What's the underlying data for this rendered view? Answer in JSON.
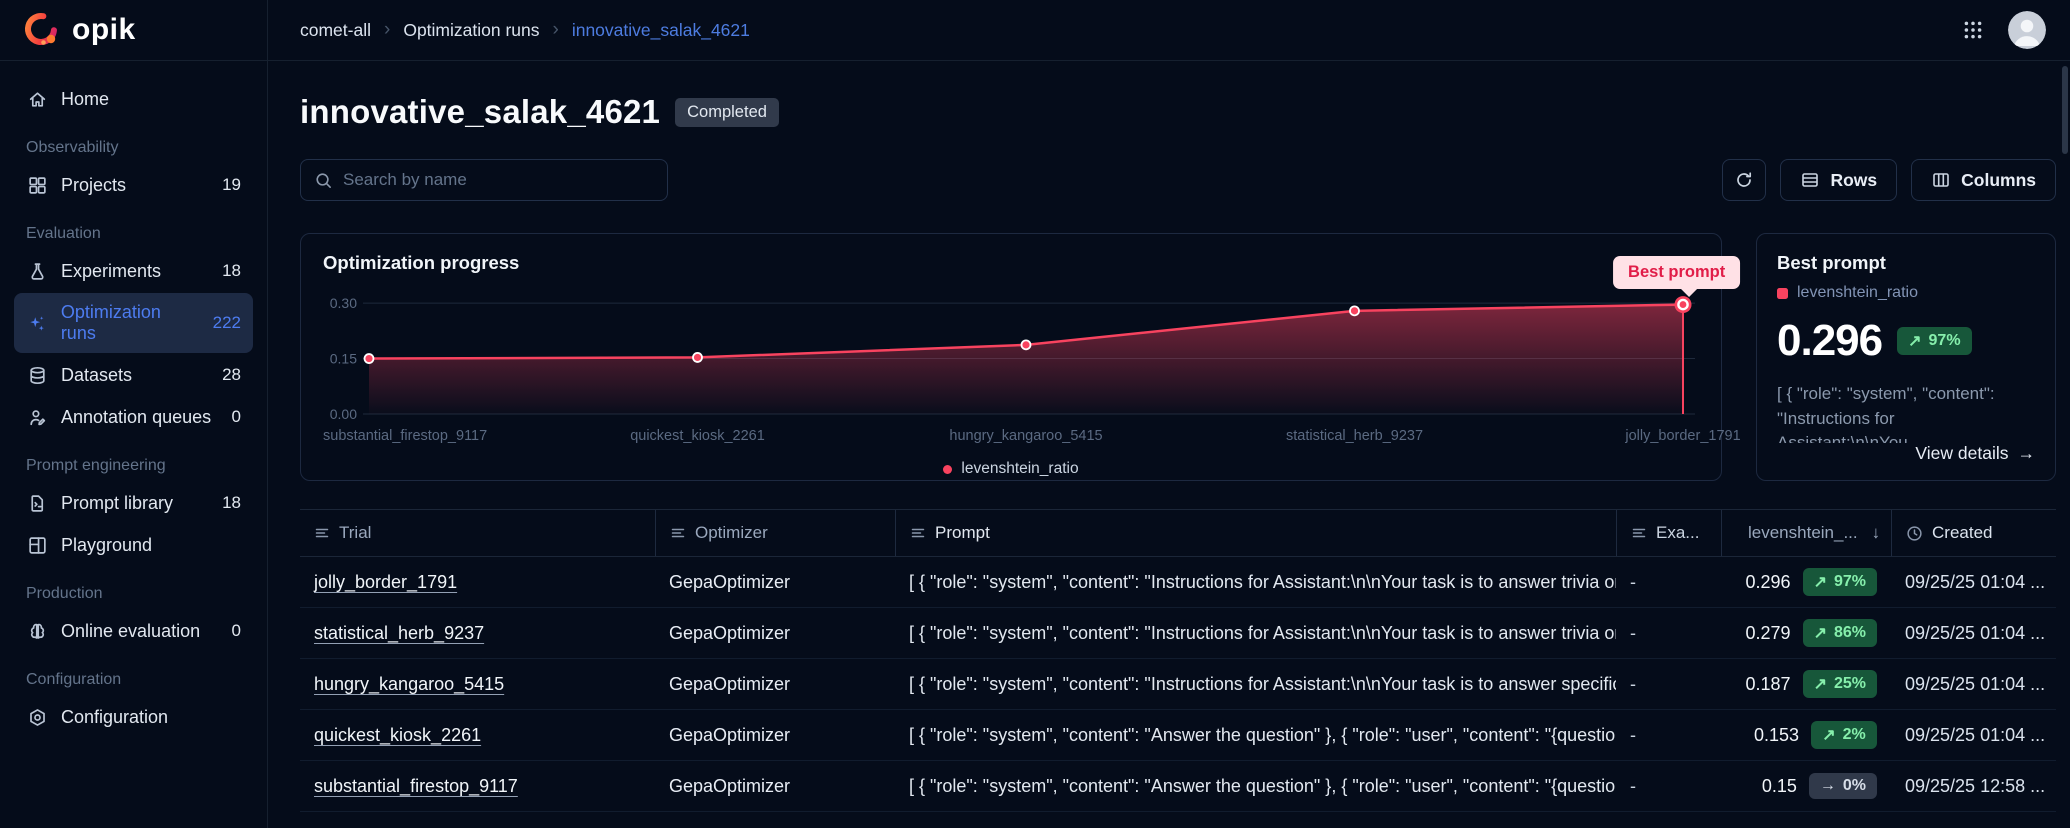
{
  "brand": {
    "name": "opik"
  },
  "topbar": {
    "breadcrumb": [
      "comet-all",
      "Optimization runs",
      "innovative_salak_4621"
    ]
  },
  "sidebar": {
    "sections": [
      {
        "title": "",
        "items": [
          {
            "icon": "home-icon",
            "label": "Home"
          }
        ]
      },
      {
        "title": "Observability",
        "items": [
          {
            "icon": "projects-icon",
            "label": "Projects",
            "count": "19"
          }
        ]
      },
      {
        "title": "Evaluation",
        "items": [
          {
            "icon": "experiments-icon",
            "label": "Experiments",
            "count": "18"
          },
          {
            "icon": "optimization-runs-icon",
            "label": "Optimization runs",
            "count": "222",
            "active": true
          },
          {
            "icon": "datasets-icon",
            "label": "Datasets",
            "count": "28"
          },
          {
            "icon": "annotation-queues-icon",
            "label": "Annotation queues",
            "count": "0"
          }
        ]
      },
      {
        "title": "Prompt engineering",
        "items": [
          {
            "icon": "prompt-library-icon",
            "label": "Prompt library",
            "count": "18"
          },
          {
            "icon": "playground-icon",
            "label": "Playground"
          }
        ]
      },
      {
        "title": "Production",
        "items": [
          {
            "icon": "online-evaluation-icon",
            "label": "Online evaluation",
            "count": "0"
          }
        ]
      },
      {
        "title": "Configuration",
        "items": [
          {
            "icon": "configuration-icon",
            "label": "Configuration"
          }
        ]
      }
    ]
  },
  "page": {
    "title": "innovative_salak_4621",
    "status": "Completed"
  },
  "toolbar": {
    "search_placeholder": "Search by name",
    "rows_label": "Rows",
    "columns_label": "Columns"
  },
  "chart_data": {
    "type": "line",
    "title": "Optimization progress",
    "categories": [
      "substantial_firestop_9117",
      "quickest_kiosk_2261",
      "hungry_kangaroo_5415",
      "statistical_herb_9237",
      "jolly_border_1791"
    ],
    "series": [
      {
        "name": "levenshtein_ratio",
        "values": [
          0.15,
          0.153,
          0.187,
          0.279,
          0.296
        ],
        "color": "#f8435f"
      }
    ],
    "yticks": [
      0.3,
      0.15,
      0.0
    ],
    "ylim": [
      0,
      0.33
    ],
    "grid": true,
    "legend_position": "bottom",
    "tooltip": "Best prompt",
    "highlight_last_point": true
  },
  "best_prompt": {
    "title": "Best prompt",
    "metric": "levenshtein_ratio",
    "value": "0.296",
    "trend": "97%",
    "snippet": "[ { \"role\": \"system\", \"content\": \"Instructions for Assistant:\\n\\nYou...",
    "link_label": "View details"
  },
  "table": {
    "columns": [
      {
        "key": "trial",
        "label": "Trial",
        "icon": "text-column-icon"
      },
      {
        "key": "optimizer",
        "label": "Optimizer",
        "icon": "text-column-icon"
      },
      {
        "key": "prompt",
        "label": "Prompt",
        "icon": "text-column-icon"
      },
      {
        "key": "examples",
        "label": "Exa...",
        "icon": "text-column-icon"
      },
      {
        "key": "score",
        "label": "levenshtein_...",
        "icon": "metric-dot",
        "sort": "desc"
      },
      {
        "key": "created",
        "label": "Created",
        "icon": "clock-icon"
      }
    ],
    "rows": [
      {
        "trial": "jolly_border_1791",
        "optimizer": "GepaOptimizer",
        "prompt": "[ { \"role\": \"system\", \"content\": \"Instructions for Assistant:\\n\\nYour task is to answer trivia or ...",
        "examples": "-",
        "score": "0.296",
        "trend": "97%",
        "trend_dir": "up",
        "created": "09/25/25 01:04 ..."
      },
      {
        "trial": "statistical_herb_9237",
        "optimizer": "GepaOptimizer",
        "prompt": "[ { \"role\": \"system\", \"content\": \"Instructions for Assistant:\\n\\nYour task is to answer trivia or ...",
        "examples": "-",
        "score": "0.279",
        "trend": "86%",
        "trend_dir": "up",
        "created": "09/25/25 01:04 ..."
      },
      {
        "trial": "hungry_kangaroo_5415",
        "optimizer": "GepaOptimizer",
        "prompt": "[ { \"role\": \"system\", \"content\": \"Instructions for Assistant:\\n\\nYour task is to answer specific ...",
        "examples": "-",
        "score": "0.187",
        "trend": "25%",
        "trend_dir": "up",
        "created": "09/25/25 01:04 ..."
      },
      {
        "trial": "quickest_kiosk_2261",
        "optimizer": "GepaOptimizer",
        "prompt": "[ { \"role\": \"system\", \"content\": \"Answer the question\" }, { \"role\": \"user\", \"content\": \"{questio...",
        "examples": "-",
        "score": "0.153",
        "trend": "2%",
        "trend_dir": "up",
        "created": "09/25/25 01:04 ..."
      },
      {
        "trial": "substantial_firestop_9117",
        "optimizer": "GepaOptimizer",
        "prompt": "[ { \"role\": \"system\", \"content\": \"Answer the question\" }, { \"role\": \"user\", \"content\": \"{questio...",
        "examples": "-",
        "score": "0.15",
        "trend": "0%",
        "trend_dir": "flat",
        "created": "09/25/25 12:58 ..."
      }
    ]
  }
}
